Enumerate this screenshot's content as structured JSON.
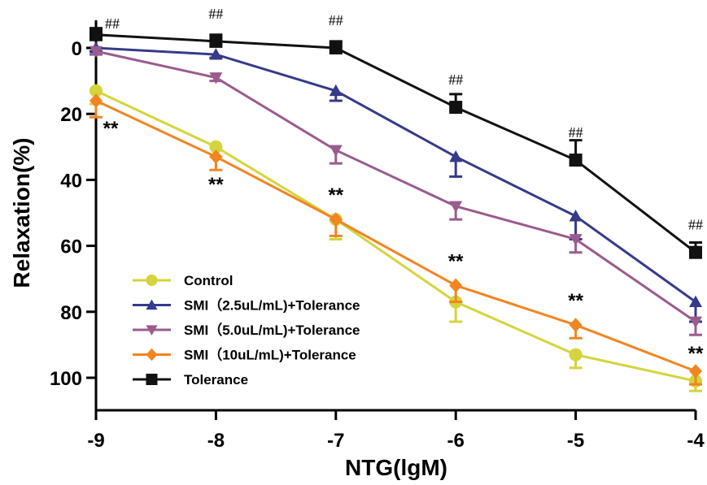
{
  "chart_data": {
    "type": "line",
    "title": "",
    "xlabel": "NTG(lgM)",
    "ylabel": "Relaxation(%)",
    "x": [
      -9,
      -8,
      -7,
      -6,
      -5,
      -4
    ],
    "x_ticks": [
      "-9",
      "-8",
      "-7",
      "-6",
      "-5",
      "-4"
    ],
    "y_ticks": [
      "0",
      "20",
      "40",
      "60",
      "80",
      "100"
    ],
    "xlim": [
      -9,
      -4
    ],
    "ylim": [
      -5,
      110
    ],
    "y_inverted": true,
    "grid": false,
    "legend_position": "bottom-left",
    "series": [
      {
        "name": "Control",
        "color": "#d4d43c",
        "marker": "circle",
        "values": [
          13,
          30,
          52,
          77,
          93,
          101
        ],
        "errors": [
          4,
          3,
          6,
          6,
          4,
          3
        ]
      },
      {
        "name": "SMI（2.5uL/mL)+Tolerance",
        "color": "#363a8a",
        "marker": "triangle-up",
        "values": [
          0,
          2,
          13,
          33,
          51,
          77
        ],
        "errors": [
          1,
          1,
          3,
          6,
          7,
          6
        ]
      },
      {
        "name": "SMI（5.0uL/mL)+Tolerance",
        "color": "#9a5b8d",
        "marker": "triangle-down",
        "values": [
          1,
          9,
          31,
          48,
          58,
          83
        ],
        "errors": [
          1,
          1,
          4,
          4,
          4,
          4
        ]
      },
      {
        "name": "SMI（10uL/mL)+Tolerance",
        "color": "#f08522",
        "marker": "diamond",
        "values": [
          16,
          33,
          52,
          72,
          84,
          98
        ],
        "errors": [
          5,
          4,
          5,
          5,
          4,
          4
        ]
      },
      {
        "name": "Tolerance",
        "color": "#111111",
        "marker": "square",
        "values": [
          -4,
          -2,
          0,
          18,
          34,
          62
        ],
        "errors": [
          2,
          2,
          2,
          4,
          6,
          3
        ]
      }
    ],
    "annotations": [
      {
        "text": "##",
        "x": -9,
        "series": "Tolerance"
      },
      {
        "text": "##",
        "x": -8,
        "series": "Tolerance"
      },
      {
        "text": "##",
        "x": -7,
        "series": "Tolerance"
      },
      {
        "text": "##",
        "x": -6,
        "series": "Tolerance"
      },
      {
        "text": "##",
        "x": -5,
        "series": "Tolerance"
      },
      {
        "text": "##",
        "x": -4,
        "series": "Tolerance"
      },
      {
        "text": "**",
        "x": -9,
        "series": "SMI（10uL/mL)+Tolerance"
      },
      {
        "text": "**",
        "x": -8,
        "series": "SMI（10uL/mL)+Tolerance"
      },
      {
        "text": "**",
        "x": -7,
        "series": "SMI（10uL/mL)+Tolerance"
      },
      {
        "text": "**",
        "x": -6,
        "series": "SMI（10uL/mL)+Tolerance"
      },
      {
        "text": "**",
        "x": -5,
        "series": "SMI（10uL/mL)+Tolerance"
      },
      {
        "text": "**",
        "x": -4,
        "series": "SMI（10uL/mL)+Tolerance"
      }
    ]
  }
}
